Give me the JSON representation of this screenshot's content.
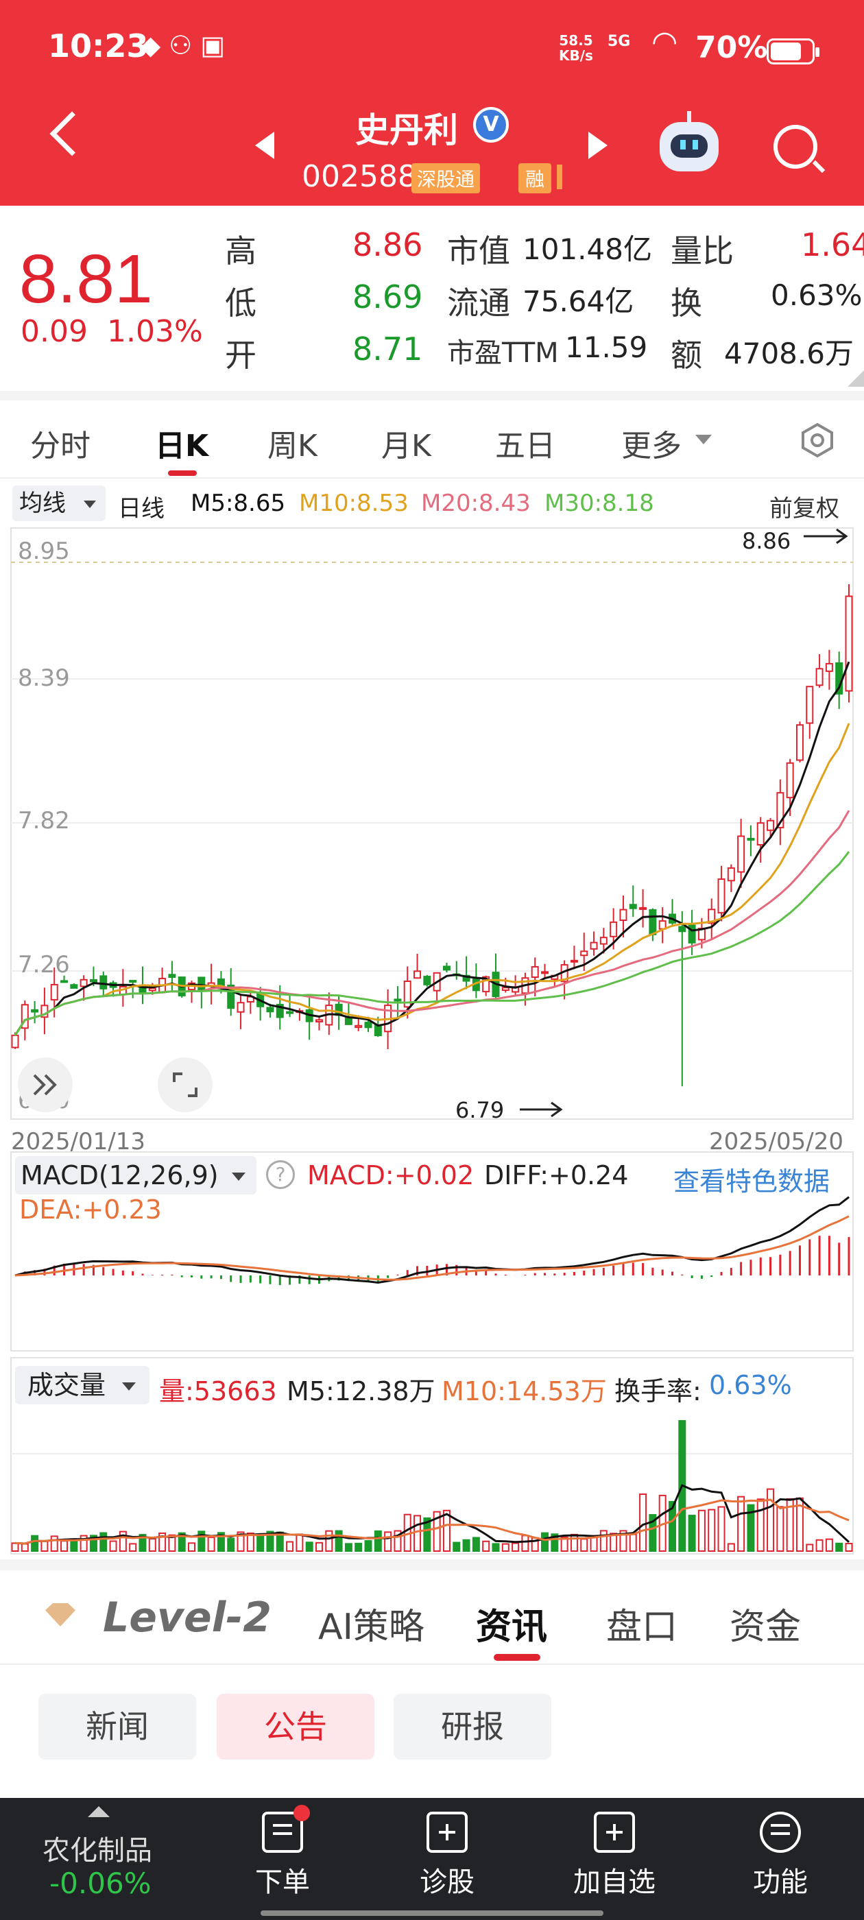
{
  "status_bar": {
    "time": "10:23",
    "notification_icons": [
      "qq-icon",
      "weibo-icon",
      "app-icon"
    ],
    "net_speed_value": "58.5",
    "net_speed_unit": "KB/s",
    "network": "5G",
    "battery": "70%"
  },
  "header": {
    "stock_name": "史丹利",
    "verified": "V",
    "stock_code": "002588",
    "tag_connect": "深股通",
    "tag_margin": "融"
  },
  "quote": {
    "price": "8.81",
    "change": "0.09",
    "change_pct": "1.03%",
    "high_label": "高",
    "high": "8.86",
    "low_label": "低",
    "low": "8.69",
    "open_label": "开",
    "open": "8.71",
    "mcap_label": "市值",
    "mcap": "101.48亿",
    "float_label": "流通",
    "float": "75.64亿",
    "pe_label": "市盈TTM",
    "pe": "11.59",
    "vr_label": "量比",
    "vr": "1.64",
    "turnover_label": "换",
    "turnover": "0.63%",
    "amount_label": "额",
    "amount": "4708.6万"
  },
  "period_tabs": [
    "分时",
    "日K",
    "周K",
    "月K",
    "五日",
    "更多"
  ],
  "ma_row": {
    "button": "均线",
    "period": "日线",
    "m5": "M5:8.65",
    "m10": "M10:8.53",
    "m20": "M20:8.43",
    "m30": "M30:8.18",
    "adjust": "前复权"
  },
  "kline": {
    "y_labels": [
      "8.95",
      "8.39",
      "7.82",
      "7.26",
      "6.70"
    ],
    "max_label": "8.86",
    "min_label": "6.79",
    "date_start": "2025/01/13",
    "date_end": "2025/05/20"
  },
  "macd": {
    "button": "MACD(12,26,9)",
    "help": "?",
    "macd": "MACD:+0.02",
    "diff": "DIFF:+0.24",
    "dea": "DEA:+0.23",
    "link": "查看特色数据"
  },
  "volume": {
    "button": "成交量",
    "vol": "量:53663",
    "m5": "M5:12.38万",
    "m10": "M10:14.53万",
    "turnover_label": "换手率:",
    "turnover": "0.63%"
  },
  "info_tabs": {
    "level2": "Level-2",
    "items": [
      "AI策略",
      "资讯",
      "盘口",
      "资金"
    ]
  },
  "news_tabs": [
    "新闻",
    "公告",
    "研报"
  ],
  "bottom_nav": {
    "sector": "农化制品",
    "sector_change": "-0.06%",
    "items": [
      "下单",
      "诊股",
      "加自选",
      "功能"
    ]
  },
  "colors": {
    "header_red": "#ec333b",
    "up": "#e0242f",
    "down": "#1b9a2c",
    "ma5": "#111111",
    "ma10": "#e0a21c",
    "ma20": "#e46b7d",
    "ma30": "#5fbf4a"
  },
  "chart_data": {
    "type": "candlestick",
    "x_range": [
      "2025/01/13",
      "2025/05/20"
    ],
    "y_ticks": [
      8.95,
      8.39,
      7.82,
      7.26,
      6.7
    ],
    "ylim": [
      6.7,
      8.95
    ],
    "high_marker": 8.86,
    "low_marker": 6.79,
    "close_last": 8.81,
    "ma": {
      "M5": 8.65,
      "M10": 8.53,
      "M20": 8.43,
      "M30": 8.18
    }
  }
}
